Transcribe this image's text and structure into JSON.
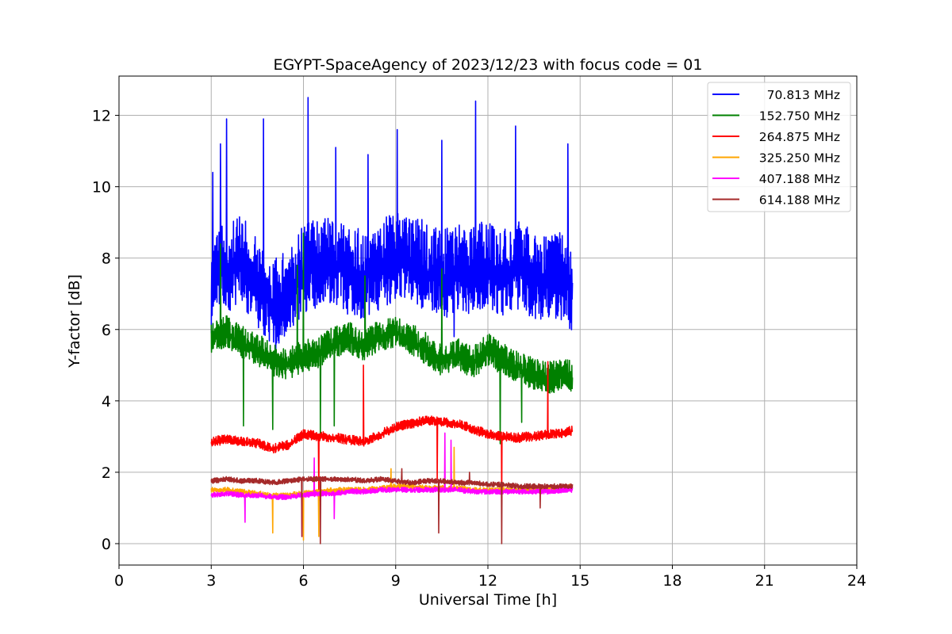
{
  "chart_data": {
    "type": "line",
    "title": "EGYPT-SpaceAgency of 2023/12/23 with focus code = 01",
    "xlabel": "Universal Time [h]",
    "ylabel": "Y-factor [dB]",
    "xlim": [
      0,
      24
    ],
    "ylim": [
      -0.6,
      13.1
    ],
    "xticks": [
      0,
      3,
      6,
      9,
      12,
      15,
      18,
      21,
      24
    ],
    "yticks": [
      0,
      2,
      4,
      6,
      8,
      10,
      12
    ],
    "grid": true,
    "legend_position": "top-right",
    "x_range_of_data": [
      3.0,
      14.75
    ],
    "series": [
      {
        "name": "70.813 MHz",
        "color": "#0000ff",
        "x": [
          3.0,
          3.5,
          4.0,
          4.5,
          5.0,
          5.5,
          6.0,
          6.5,
          7.0,
          7.5,
          8.0,
          8.5,
          9.0,
          9.5,
          10.0,
          10.5,
          11.0,
          11.5,
          12.0,
          12.5,
          13.0,
          13.5,
          14.0,
          14.5,
          14.75
        ],
        "y": [
          7.5,
          7.6,
          7.8,
          7.2,
          6.6,
          6.9,
          7.6,
          7.7,
          7.8,
          7.5,
          7.4,
          7.7,
          7.9,
          7.9,
          7.6,
          7.4,
          7.6,
          7.5,
          7.7,
          7.4,
          7.7,
          7.3,
          7.3,
          7.4,
          7.0
        ],
        "peaks": [
          [
            3.05,
            10.4
          ],
          [
            3.3,
            11.2
          ],
          [
            3.5,
            11.9
          ],
          [
            4.7,
            11.9
          ],
          [
            6.15,
            12.5
          ],
          [
            7.05,
            11.1
          ],
          [
            8.1,
            10.9
          ],
          [
            9.05,
            11.6
          ],
          [
            10.5,
            11.3
          ],
          [
            11.6,
            12.4
          ],
          [
            12.9,
            11.7
          ],
          [
            14.6,
            11.2
          ]
        ],
        "troughs": [
          [
            3.0,
            5.9
          ],
          [
            5.1,
            5.4
          ],
          [
            10.9,
            5.8
          ],
          [
            14.7,
            6.2
          ]
        ]
      },
      {
        "name": "152.750 MHz",
        "color": "#008000",
        "x": [
          3.0,
          3.5,
          4.0,
          4.5,
          5.0,
          5.5,
          6.0,
          6.5,
          7.0,
          7.5,
          8.0,
          8.5,
          9.0,
          9.5,
          10.0,
          10.5,
          11.0,
          11.5,
          12.0,
          12.5,
          13.0,
          13.5,
          14.0,
          14.5,
          14.75
        ],
        "y": [
          5.7,
          5.9,
          5.6,
          5.4,
          5.1,
          5.0,
          5.2,
          5.3,
          5.6,
          5.7,
          5.5,
          5.8,
          5.9,
          5.7,
          5.4,
          5.1,
          5.3,
          5.0,
          5.4,
          5.1,
          4.9,
          4.7,
          4.6,
          4.7,
          4.6
        ],
        "peaks": [
          [
            3.3,
            8.4
          ],
          [
            5.8,
            7.8
          ],
          [
            6.0,
            8.7
          ],
          [
            8.0,
            7.5
          ],
          [
            10.5,
            7.7
          ]
        ],
        "troughs": [
          [
            4.05,
            3.3
          ],
          [
            5.0,
            3.2
          ],
          [
            6.55,
            3.1
          ],
          [
            7.0,
            3.3
          ],
          [
            12.4,
            2.8
          ],
          [
            13.1,
            3.4
          ]
        ]
      },
      {
        "name": "264.875 MHz",
        "color": "#ff0000",
        "x": [
          3.0,
          3.5,
          4.0,
          4.5,
          5.0,
          5.5,
          6.0,
          6.5,
          7.0,
          7.5,
          8.0,
          8.5,
          9.0,
          9.5,
          10.0,
          10.5,
          11.0,
          11.5,
          12.0,
          12.5,
          13.0,
          13.5,
          14.0,
          14.5,
          14.75
        ],
        "y": [
          2.85,
          2.9,
          2.85,
          2.8,
          2.65,
          2.75,
          3.05,
          3.0,
          2.95,
          2.9,
          2.85,
          3.05,
          3.25,
          3.35,
          3.45,
          3.4,
          3.35,
          3.2,
          3.05,
          3.0,
          2.95,
          3.0,
          3.05,
          3.1,
          3.15
        ],
        "peaks": [
          [
            7.95,
            5.0
          ],
          [
            10.35,
            4.6
          ],
          [
            13.95,
            5.1
          ]
        ],
        "troughs": [
          [
            6.5,
            1.2
          ],
          [
            10.35,
            1.8
          ],
          [
            12.45,
            1.1
          ]
        ]
      },
      {
        "name": "325.250 MHz",
        "color": "#ffa500",
        "x": [
          3.0,
          3.5,
          4.0,
          4.5,
          5.0,
          5.5,
          6.0,
          6.5,
          7.0,
          7.5,
          8.0,
          8.5,
          9.0,
          9.5,
          10.0,
          10.5,
          11.0,
          11.5,
          12.0,
          12.5,
          13.0,
          13.5,
          14.0,
          14.5,
          14.75
        ],
        "y": [
          1.5,
          1.5,
          1.45,
          1.4,
          1.35,
          1.35,
          1.4,
          1.45,
          1.5,
          1.5,
          1.5,
          1.55,
          1.6,
          1.6,
          1.55,
          1.55,
          1.55,
          1.5,
          1.5,
          1.5,
          1.5,
          1.5,
          1.55,
          1.55,
          1.6
        ],
        "peaks": [
          [
            8.85,
            2.1
          ],
          [
            10.9,
            2.7
          ]
        ],
        "troughs": [
          [
            5.0,
            0.3
          ],
          [
            6.0,
            0.1
          ],
          [
            6.5,
            0.2
          ]
        ]
      },
      {
        "name": "407.188 MHz",
        "color": "#ff00ff",
        "x": [
          3.0,
          3.5,
          4.0,
          4.5,
          5.0,
          5.5,
          6.0,
          6.5,
          7.0,
          7.5,
          8.0,
          8.5,
          9.0,
          9.5,
          10.0,
          10.5,
          11.0,
          11.5,
          12.0,
          12.5,
          13.0,
          13.5,
          14.0,
          14.5,
          14.75
        ],
        "y": [
          1.35,
          1.4,
          1.35,
          1.35,
          1.3,
          1.3,
          1.35,
          1.4,
          1.4,
          1.45,
          1.45,
          1.5,
          1.5,
          1.5,
          1.5,
          1.5,
          1.5,
          1.45,
          1.45,
          1.45,
          1.45,
          1.45,
          1.45,
          1.5,
          1.5
        ],
        "peaks": [
          [
            6.35,
            2.4
          ],
          [
            10.6,
            3.1
          ],
          [
            10.8,
            2.9
          ]
        ],
        "troughs": [
          [
            4.1,
            0.6
          ],
          [
            5.95,
            0.2
          ],
          [
            7.0,
            0.7
          ]
        ]
      },
      {
        "name": "614.188 MHz",
        "color": "#a52a2a",
        "x": [
          3.0,
          3.5,
          4.0,
          4.5,
          5.0,
          5.5,
          6.0,
          6.5,
          7.0,
          7.5,
          8.0,
          8.5,
          9.0,
          9.5,
          10.0,
          10.5,
          11.0,
          11.5,
          12.0,
          12.5,
          13.0,
          13.5,
          14.0,
          14.5,
          14.75
        ],
        "y": [
          1.75,
          1.8,
          1.75,
          1.75,
          1.7,
          1.75,
          1.8,
          1.8,
          1.8,
          1.8,
          1.75,
          1.8,
          1.75,
          1.7,
          1.75,
          1.75,
          1.7,
          1.7,
          1.65,
          1.65,
          1.6,
          1.6,
          1.6,
          1.6,
          1.6
        ],
        "peaks": [
          [
            9.2,
            2.1
          ],
          [
            11.4,
            2.0
          ]
        ],
        "troughs": [
          [
            5.95,
            0.2
          ],
          [
            6.55,
            0.0
          ],
          [
            10.4,
            0.3
          ],
          [
            12.45,
            0.0
          ],
          [
            13.7,
            1.0
          ]
        ]
      }
    ]
  }
}
